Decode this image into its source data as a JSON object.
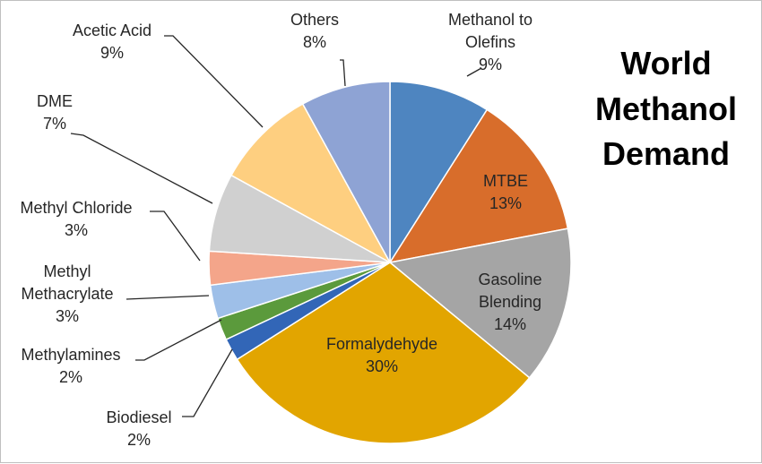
{
  "chart_data": {
    "type": "pie",
    "title_lines": [
      "World",
      "Methanol",
      "Demand"
    ],
    "start_angle_deg": 0,
    "direction": "clockwise",
    "legend": "none",
    "slices": [
      {
        "label_lines": [
          "Methanol to",
          "Olefins"
        ],
        "pct_label": "9%",
        "value": 9,
        "color": "#4e85c0",
        "label_pos": "outside",
        "text_color": "#262626"
      },
      {
        "label_lines": [
          "MTBE"
        ],
        "pct_label": "13%",
        "value": 13,
        "color": "#d86d2b",
        "label_pos": "inside",
        "text_color": "#262626"
      },
      {
        "label_lines": [
          "Gasoline",
          "Blending"
        ],
        "pct_label": "14%",
        "value": 14,
        "color": "#a5a5a5",
        "label_pos": "inside",
        "text_color": "#262626"
      },
      {
        "label_lines": [
          "Formalydehyde"
        ],
        "pct_label": "30%",
        "value": 30,
        "color": "#e2a500",
        "label_pos": "inside",
        "text_color": "#262626"
      },
      {
        "label_lines": [
          "Biodiesel"
        ],
        "pct_label": "2%",
        "value": 2,
        "color": "#3266b7",
        "label_pos": "outside",
        "text_color": "#262626"
      },
      {
        "label_lines": [
          "Methylamines"
        ],
        "pct_label": "2%",
        "value": 2,
        "color": "#5b9a3c",
        "label_pos": "outside",
        "text_color": "#262626"
      },
      {
        "label_lines": [
          "Methyl",
          "Methacrylate"
        ],
        "pct_label": "3%",
        "value": 3,
        "color": "#9ebfe8",
        "label_pos": "outside",
        "text_color": "#262626"
      },
      {
        "label_lines": [
          "Methyl Chloride"
        ],
        "pct_label": "3%",
        "value": 3,
        "color": "#f4a58a",
        "label_pos": "outside",
        "text_color": "#262626"
      },
      {
        "label_lines": [
          "DME"
        ],
        "pct_label": "7%",
        "value": 7,
        "color": "#d0d0d0",
        "label_pos": "outside",
        "text_color": "#262626"
      },
      {
        "label_lines": [
          "Acetic Acid"
        ],
        "pct_label": "9%",
        "value": 9,
        "color": "#fecf80",
        "label_pos": "outside",
        "text_color": "#262626"
      },
      {
        "label_lines": [
          "Others"
        ],
        "pct_label": "8%",
        "value": 8,
        "color": "#8ea3d4",
        "label_pos": "outside",
        "text_color": "#262626"
      }
    ]
  }
}
